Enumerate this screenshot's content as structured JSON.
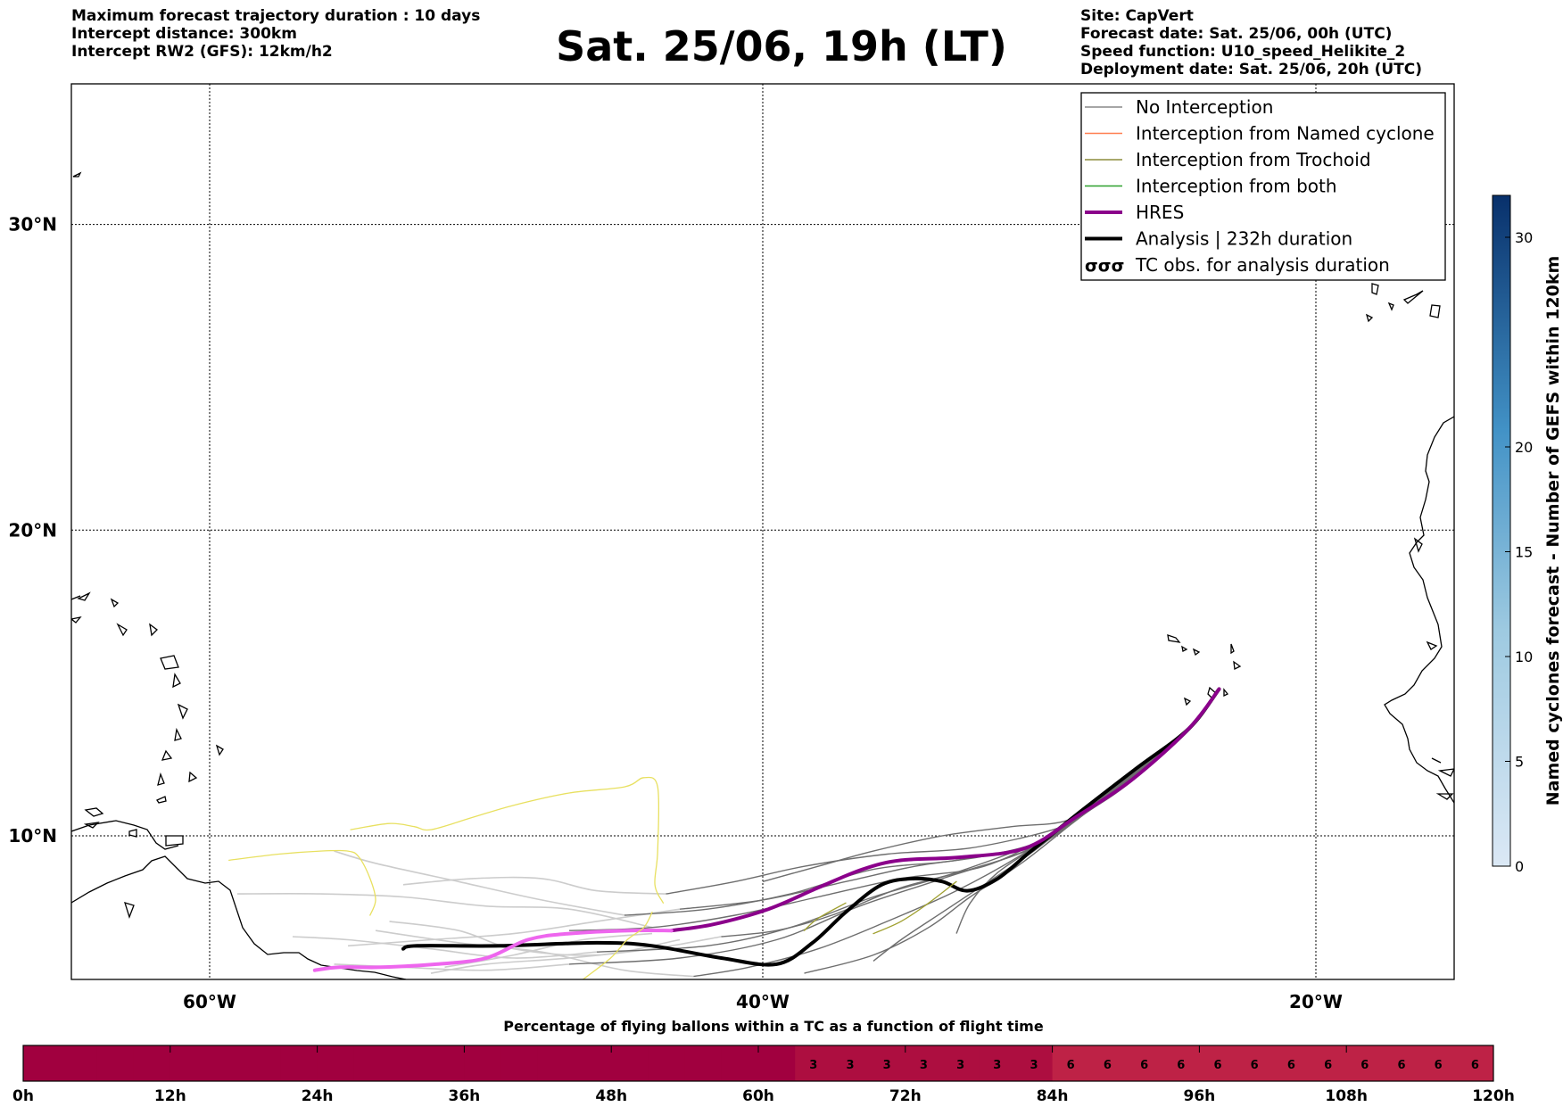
{
  "header": {
    "left_lines": [
      "Maximum forecast trajectory duration : 10 days",
      "Intercept distance: 300km",
      "Intercept RW2 (GFS):  12km/h2"
    ],
    "right_lines": [
      "Site: CapVert",
      "Forecast date: Sat. 25/06, 00h (UTC)",
      "Speed function: U10_speed_Helikite_2",
      "Deployment date: Sat. 25/06, 20h (UTC)"
    ],
    "title": "Sat. 25/06, 19h (LT)"
  },
  "chart_data": [
    {
      "type": "line",
      "subtype": "trajectory-map",
      "xlim": [
        -65,
        -15
      ],
      "ylim": [
        5.3,
        34.6
      ],
      "x_ticks": [
        {
          "value": -60,
          "label": "60°W"
        },
        {
          "value": -40,
          "label": "40°W"
        },
        {
          "value": -20,
          "label": "20°W"
        }
      ],
      "y_ticks": [
        {
          "value": 10,
          "label": "10°N"
        },
        {
          "value": 20,
          "label": "20°N"
        },
        {
          "value": 30,
          "label": "30°N"
        }
      ],
      "grid": true,
      "legend_position": "top-right",
      "legend": [
        {
          "label": "No Interception",
          "color": "#888888",
          "style": "line-thin"
        },
        {
          "label": "Interception from Named cyclone",
          "color": "#ff7f50",
          "style": "line-thin"
        },
        {
          "label": "Interception from Trochoid",
          "color": "#8b8b3c",
          "style": "line-thin"
        },
        {
          "label": "Interception from both",
          "color": "#2ca02c",
          "style": "line-thin"
        },
        {
          "label": "HRES",
          "color": "#8b008b",
          "style": "line-thick"
        },
        {
          "label": "Analysis | 232h duration",
          "color": "#000000",
          "style": "line-thick"
        },
        {
          "label": "TC obs. for analysis duration",
          "color": "#000000",
          "style": "tc-symbols"
        }
      ],
      "origin": [
        -23.5,
        14.8
      ],
      "series": [
        {
          "name": "Analysis | 232h duration",
          "color": "#000000",
          "width": 4,
          "points": [
            [
              -23.5,
              14.8
            ],
            [
              -24.6,
              13.5
            ],
            [
              -26.5,
              12.2
            ],
            [
              -28.5,
              10.8
            ],
            [
              -30.3,
              9.5
            ],
            [
              -31.5,
              8.6
            ],
            [
              -32.6,
              8.2
            ],
            [
              -33.5,
              8.5
            ],
            [
              -34.5,
              8.6
            ],
            [
              -35.7,
              8.4
            ],
            [
              -37.0,
              7.5
            ],
            [
              -38.2,
              6.5
            ],
            [
              -39.5,
              5.8
            ],
            [
              -41.5,
              6.0
            ],
            [
              -44.0,
              6.4
            ],
            [
              -46.0,
              6.5
            ],
            [
              -49.5,
              6.4
            ],
            [
              -52.5,
              6.4
            ],
            [
              -53.0,
              6.3
            ]
          ]
        },
        {
          "name": "HRES",
          "color": "#8b008b",
          "width": 4,
          "points": [
            [
              -23.5,
              14.8
            ],
            [
              -24.6,
              13.5
            ],
            [
              -26.7,
              11.8
            ],
            [
              -28.7,
              10.6
            ],
            [
              -30.5,
              9.6
            ],
            [
              -32.8,
              9.3
            ],
            [
              -35.0,
              9.2
            ],
            [
              -36.4,
              8.9
            ],
            [
              -38.0,
              8.3
            ],
            [
              -39.8,
              7.6
            ],
            [
              -41.8,
              7.1
            ],
            [
              -43.3,
              6.9
            ]
          ]
        },
        {
          "name": "HRES-faded",
          "color": "#ee66ee",
          "width": 4,
          "points": [
            [
              -43.3,
              6.9
            ],
            [
              -44.8,
              6.9
            ],
            [
              -47.0,
              6.8
            ],
            [
              -48.5,
              6.6
            ],
            [
              -50.0,
              6.0
            ],
            [
              -51.8,
              5.8
            ],
            [
              -53.8,
              5.7
            ],
            [
              -55.3,
              5.7
            ],
            [
              -56.2,
              5.6
            ]
          ]
        },
        {
          "name": "yellow-1",
          "color": "#e8e060",
          "width": 1.3,
          "points": [
            [
              -59.3,
              9.2
            ],
            [
              -57.5,
              9.4
            ],
            [
              -56.0,
              9.5
            ],
            [
              -55.0,
              9.5
            ],
            [
              -54.6,
              9.3
            ],
            [
              -54.2,
              8.6
            ],
            [
              -54.0,
              7.9
            ],
            [
              -54.2,
              7.4
            ]
          ]
        },
        {
          "name": "yellow-2",
          "color": "#e8e060",
          "width": 1.3,
          "points": [
            [
              -54.9,
              10.2
            ],
            [
              -53.5,
              10.4
            ],
            [
              -52.6,
              10.3
            ],
            [
              -52.0,
              10.2
            ],
            [
              -50.5,
              10.6
            ],
            [
              -49.0,
              11.0
            ],
            [
              -47.0,
              11.4
            ],
            [
              -45.0,
              11.6
            ],
            [
              -44.3,
              11.9
            ],
            [
              -43.8,
              11.6
            ],
            [
              -43.8,
              9.5
            ],
            [
              -43.9,
              8.4
            ],
            [
              -43.6,
              7.8
            ]
          ]
        },
        {
          "name": "yellow-3",
          "color": "#e8e060",
          "width": 1.3,
          "points": [
            [
              -44.0,
              7.5
            ],
            [
              -44.3,
              7.0
            ],
            [
              -44.9,
              6.6
            ],
            [
              -45.5,
              6.0
            ],
            [
              -46.5,
              5.3
            ]
          ]
        },
        {
          "name": "olive-1",
          "color": "#a0a030",
          "width": 1.3,
          "points": [
            [
              -33.0,
              8.5
            ],
            [
              -34.0,
              7.8
            ],
            [
              -35.0,
              7.2
            ],
            [
              -36.0,
              6.8
            ]
          ]
        },
        {
          "name": "olive-2",
          "color": "#a0a030",
          "width": 1.3,
          "points": [
            [
              -37.0,
              7.8
            ],
            [
              -38.0,
              7.3
            ],
            [
              -38.5,
              6.9
            ]
          ]
        }
      ],
      "traj_color": "#6e6e6e",
      "traj_light_color": "#cccccc",
      "traj_tails": [
        [
          [
            -29.5,
            10.1
          ],
          [
            -32.0,
            9.0
          ],
          [
            -35.0,
            8.6
          ],
          [
            -38.0,
            8.0
          ],
          [
            -41.0,
            7.4
          ],
          [
            -44.0,
            7.0
          ],
          [
            -47.0,
            6.9
          ]
        ],
        [
          [
            -30.0,
            9.8
          ],
          [
            -33.0,
            9.2
          ],
          [
            -36.0,
            8.9
          ],
          [
            -39.0,
            8.1
          ],
          [
            -42.0,
            7.6
          ],
          [
            -45.0,
            7.4
          ]
        ],
        [
          [
            -29.8,
            9.9
          ],
          [
            -33.0,
            8.8
          ],
          [
            -36.0,
            8.0
          ],
          [
            -39.0,
            7.0
          ],
          [
            -42.0,
            6.4
          ],
          [
            -46.0,
            6.2
          ]
        ],
        [
          [
            -30.3,
            9.6
          ],
          [
            -33.5,
            8.6
          ],
          [
            -36.5,
            7.7
          ],
          [
            -39.5,
            6.6
          ],
          [
            -43.0,
            6.0
          ],
          [
            -47.0,
            5.8
          ]
        ],
        [
          [
            -29.5,
            10.2
          ],
          [
            -32.5,
            9.6
          ],
          [
            -35.5,
            9.4
          ],
          [
            -38.5,
            9.0
          ],
          [
            -41.0,
            8.5
          ],
          [
            -43.5,
            8.1
          ]
        ],
        [
          [
            -30.6,
            9.4
          ],
          [
            -33.0,
            8.2
          ],
          [
            -35.5,
            7.2
          ],
          [
            -38.0,
            6.3
          ],
          [
            -40.5,
            5.7
          ],
          [
            -42.5,
            5.4
          ]
        ],
        [
          [
            -30.0,
            9.7
          ],
          [
            -32.2,
            9.3
          ],
          [
            -34.5,
            9.0
          ],
          [
            -37.0,
            8.5
          ],
          [
            -40.0,
            7.9
          ],
          [
            -43.0,
            7.6
          ]
        ],
        [
          [
            -30.5,
            9.2
          ],
          [
            -32.5,
            8.0
          ],
          [
            -34.0,
            7.0
          ],
          [
            -36.0,
            6.1
          ],
          [
            -38.5,
            5.5
          ]
        ],
        [
          [
            -29.0,
            10.5
          ],
          [
            -31.0,
            10.3
          ],
          [
            -33.5,
            10.0
          ],
          [
            -36.0,
            9.5
          ],
          [
            -38.0,
            9.0
          ],
          [
            -40.0,
            8.5
          ]
        ],
        [
          [
            -30.2,
            9.5
          ],
          [
            -32.0,
            8.4
          ],
          [
            -33.5,
            7.5
          ],
          [
            -35.0,
            6.6
          ],
          [
            -36.0,
            5.9
          ]
        ],
        [
          [
            -30.0,
            9.7
          ],
          [
            -32.5,
            8.9
          ],
          [
            -35.0,
            8.3
          ],
          [
            -37.5,
            7.4
          ],
          [
            -39.5,
            6.9
          ],
          [
            -41.5,
            6.7
          ]
        ],
        [
          [
            -29.7,
            9.9
          ],
          [
            -31.5,
            8.8
          ],
          [
            -32.5,
            7.8
          ],
          [
            -33.0,
            6.8
          ]
        ]
      ],
      "traj_tails_light": [
        [
          [
            -44.0,
            7.0
          ],
          [
            -47.0,
            7.6
          ],
          [
            -50.0,
            7.7
          ],
          [
            -53.0,
            8.0
          ],
          [
            -56.0,
            8.1
          ],
          [
            -59.0,
            8.1
          ]
        ],
        [
          [
            -45.0,
            7.4
          ],
          [
            -48.0,
            7.9
          ],
          [
            -51.0,
            8.5
          ],
          [
            -54.0,
            9.1
          ],
          [
            -55.5,
            9.5
          ]
        ],
        [
          [
            -46.0,
            6.2
          ],
          [
            -49.0,
            6.0
          ],
          [
            -52.0,
            6.3
          ],
          [
            -55.0,
            6.6
          ],
          [
            -57.0,
            6.7
          ]
        ],
        [
          [
            -47.0,
            5.8
          ],
          [
            -50.0,
            5.6
          ],
          [
            -53.0,
            5.7
          ],
          [
            -55.5,
            5.8
          ]
        ],
        [
          [
            -43.5,
            8.1
          ],
          [
            -46.0,
            8.2
          ],
          [
            -48.0,
            8.6
          ],
          [
            -50.5,
            8.6
          ],
          [
            -53.0,
            8.4
          ]
        ],
        [
          [
            -42.5,
            5.4
          ],
          [
            -45.0,
            5.6
          ],
          [
            -48.0,
            6.2
          ],
          [
            -51.0,
            6.5
          ],
          [
            -54.0,
            6.9
          ]
        ],
        [
          [
            -43.0,
            7.6
          ],
          [
            -46.0,
            7.2
          ],
          [
            -49.0,
            6.8
          ],
          [
            -52.0,
            6.6
          ],
          [
            -55.0,
            6.4
          ]
        ],
        [
          [
            -41.5,
            6.7
          ],
          [
            -44.0,
            6.3
          ],
          [
            -47.0,
            6.0
          ],
          [
            -50.0,
            5.8
          ],
          [
            -52.0,
            5.5
          ]
        ],
        [
          [
            -43.0,
            6.6
          ],
          [
            -46.0,
            6.1
          ],
          [
            -49.0,
            6.3
          ],
          [
            -51.0,
            6.9
          ],
          [
            -53.5,
            7.2
          ]
        ],
        [
          [
            -44.0,
            6.8
          ],
          [
            -46.5,
            6.6
          ],
          [
            -49.0,
            6.1
          ],
          [
            -51.5,
            5.7
          ]
        ]
      ],
      "traj_spread": [
        0,
        0.25,
        -0.2,
        0.4,
        -0.35,
        0.55,
        -0.5,
        0.15,
        0.7,
        -0.1,
        0.3,
        -0.6,
        0.05,
        0.45,
        -0.3
      ]
    },
    {
      "type": "heatmap",
      "title": "Percentage of flying ballons within a TC as a function of flight time",
      "x_ticks": [
        "0h",
        "12h",
        "24h",
        "36h",
        "48h",
        "60h",
        "72h",
        "84h",
        "96h",
        "108h",
        "120h"
      ],
      "x_range_hours": [
        0,
        120
      ],
      "bin_hours": 3,
      "values": [
        0,
        0,
        0,
        0,
        0,
        0,
        0,
        0,
        0,
        0,
        0,
        0,
        0,
        0,
        0,
        0,
        0,
        0,
        0,
        0,
        0,
        3,
        3,
        3,
        3,
        3,
        3,
        3,
        6,
        6,
        6,
        6,
        6,
        6,
        6,
        6,
        6,
        6,
        6,
        6
      ],
      "colors": {
        "0": "#a1003f",
        "3": "#ad0e40",
        "6": "#be2246"
      }
    },
    {
      "type": "colorbar",
      "label": "Named cyclones forecast - Number of GEFS within 120km",
      "range": [
        0,
        32
      ],
      "ticks": [
        0,
        5,
        10,
        15,
        20,
        30
      ],
      "color_low": "#dbe8f5",
      "color_high": "#08306b"
    }
  ]
}
